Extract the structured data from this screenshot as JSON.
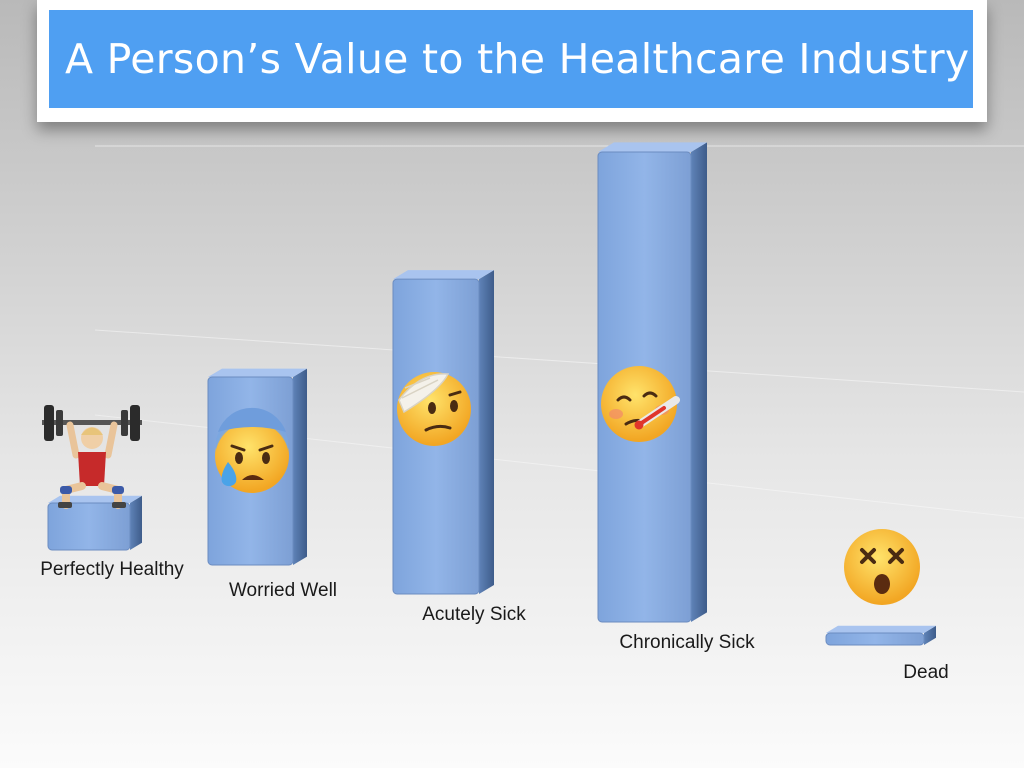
{
  "title": "A Person’s Value to the Healthcare Industry",
  "chart_data": {
    "type": "bar",
    "title": "A Person’s Value to the Healthcare Industry",
    "categories": [
      "Perfectly Healthy",
      "Worried Well",
      "Acutely Sick",
      "Chronically Sick",
      "Dead"
    ],
    "values": [
      10,
      40,
      67,
      100,
      2
    ],
    "xlabel": "",
    "ylabel": "",
    "ylim": [
      0,
      100
    ],
    "grid": false,
    "legend": "none",
    "style": "3d-perspective",
    "icons": [
      "weightlifter-icon",
      "anxious-sweat-face-icon",
      "bandaged-head-face-icon",
      "thermometer-face-icon",
      "dizzy-dead-face-icon"
    ],
    "colors": {
      "bar_front": "#8bb0e6",
      "bar_side": "#4d6e9e",
      "bar_top": "#a9c4ef",
      "title_bar": "#4f9ff2"
    }
  }
}
